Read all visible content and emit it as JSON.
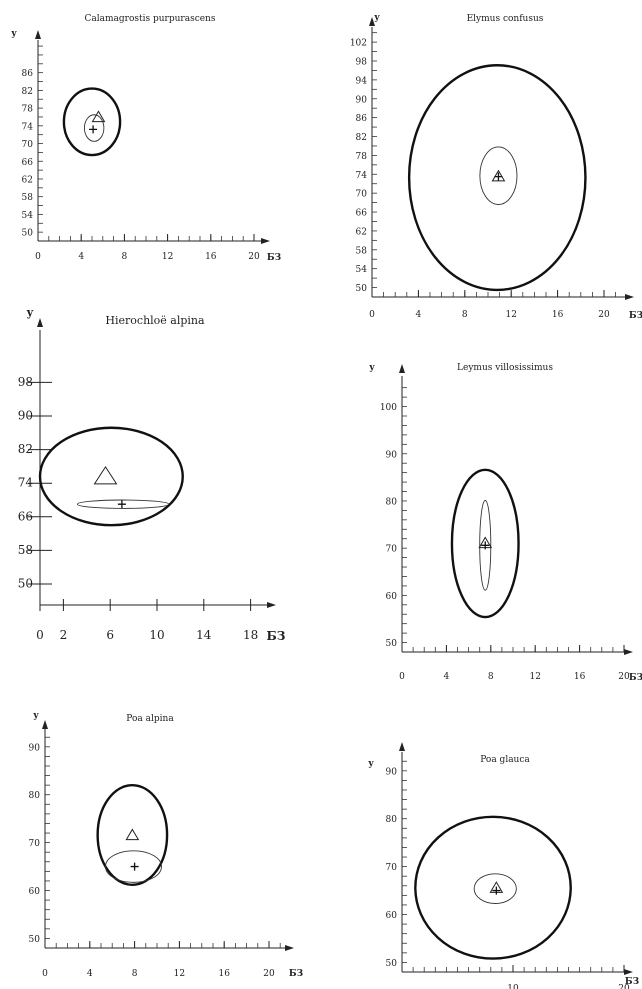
{
  "chart_data": [
    {
      "type": "scatter",
      "title": "Calamagrostis purpurascens",
      "xlabel": "БЗ",
      "ylabel": "y",
      "xticks": [
        0,
        4,
        8,
        12,
        16,
        20
      ],
      "yticks": [
        50,
        54,
        58,
        62,
        66,
        70,
        74,
        78,
        82,
        86
      ],
      "xlim": [
        0,
        22
      ],
      "ylim": [
        48,
        88
      ],
      "triangle": {
        "x": 5.6,
        "y": 75.9
      },
      "cross": {
        "x": 5.1,
        "y": 73.2
      },
      "outer_ellipse": {
        "cx": 5.0,
        "cy": 74.9,
        "rx": 2.6,
        "ry": 7.5
      },
      "inner_ellipse": {
        "cx": 5.2,
        "cy": 73.5,
        "rx": 0.9,
        "ry": 3.0
      }
    },
    {
      "type": "scatter",
      "title": "Elymus confusus",
      "xlabel": "БЗ",
      "ylabel": "y",
      "xticks": [
        0,
        4,
        8,
        12,
        16,
        20
      ],
      "yticks": [
        50,
        54,
        58,
        62,
        66,
        70,
        74,
        78,
        82,
        86,
        90,
        94,
        98,
        102
      ],
      "xlim": [
        0,
        22
      ],
      "ylim": [
        48,
        104
      ],
      "triangle": {
        "x": 10.9,
        "y": 73.5
      },
      "cross": {
        "x": 10.9,
        "y": 73.5
      },
      "outer_ellipse": {
        "cx": 10.8,
        "cy": 73.3,
        "rx": 7.6,
        "ry": 23.8
      },
      "inner_ellipse": {
        "cx": 10.9,
        "cy": 73.7,
        "rx": 1.6,
        "ry": 6.1
      }
    },
    {
      "type": "scatter",
      "title": "Hierochloë alpina",
      "xlabel": "БЗ",
      "ylabel": "y",
      "xticks": [
        0,
        2,
        6,
        10,
        14,
        18
      ],
      "yticks": [
        50,
        58,
        66,
        74,
        82,
        90,
        98
      ],
      "xlim": [
        0,
        20
      ],
      "ylim": [
        45,
        100
      ],
      "triangle": {
        "x": 5.6,
        "y": 75.5
      },
      "cross": {
        "x": 7.0,
        "y": 69.0
      },
      "outer_ellipse": {
        "cx": 6.1,
        "cy": 75.6,
        "rx": 6.1,
        "ry": 11.6
      },
      "inner_ellipse": {
        "cx": 7.1,
        "cy": 69.0,
        "rx": 3.9,
        "ry": 1.0
      }
    },
    {
      "type": "scatter",
      "title": "Leymus villosissimus",
      "xlabel": "БЗ",
      "ylabel": "y",
      "xticks": [
        0,
        4,
        8,
        12,
        16,
        20
      ],
      "yticks": [
        50,
        60,
        70,
        80,
        90,
        100
      ],
      "xlim": [
        0,
        22
      ],
      "ylim": [
        48,
        105
      ],
      "triangle": {
        "x": 7.5,
        "y": 71.0
      },
      "cross": {
        "x": 7.5,
        "y": 70.6
      },
      "outer_ellipse": {
        "cx": 7.5,
        "cy": 71.0,
        "rx": 3.0,
        "ry": 15.6
      },
      "inner_ellipse": {
        "cx": 7.5,
        "cy": 70.6,
        "rx": 0.5,
        "ry": 9.5
      }
    },
    {
      "type": "scatter",
      "title": "Poa alpina",
      "xlabel": "БЗ",
      "ylabel": "y",
      "xticks": [
        0,
        4,
        8,
        12,
        16,
        20
      ],
      "yticks": [
        50,
        60,
        70,
        80,
        90
      ],
      "xlim": [
        0,
        22
      ],
      "ylim": [
        48,
        95
      ],
      "triangle": {
        "x": 7.8,
        "y": 71.5
      },
      "cross": {
        "x": 8.0,
        "y": 65.0
      },
      "outer_ellipse": {
        "cx": 7.8,
        "cy": 71.6,
        "rx": 3.1,
        "ry": 10.4
      },
      "inner_ellipse": {
        "cx": 7.9,
        "cy": 65.0,
        "rx": 2.5,
        "ry": 3.3
      }
    },
    {
      "type": "scatter",
      "title": "Poa glauca",
      "xlabel": "БЗ",
      "ylabel": "y",
      "xticks": [
        10,
        20
      ],
      "yticks": [
        50,
        60,
        70,
        80,
        90
      ],
      "xlim": [
        0,
        20.5
      ],
      "ylim": [
        48,
        93
      ],
      "triangle": {
        "x": 8.5,
        "y": 65.5
      },
      "cross": {
        "x": 8.5,
        "y": 65.0
      },
      "outer_ellipse": {
        "cx": 8.2,
        "cy": 65.6,
        "rx": 7.0,
        "ry": 14.8
      },
      "inner_ellipse": {
        "cx": 8.4,
        "cy": 65.4,
        "rx": 1.9,
        "ry": 3.1
      }
    }
  ]
}
